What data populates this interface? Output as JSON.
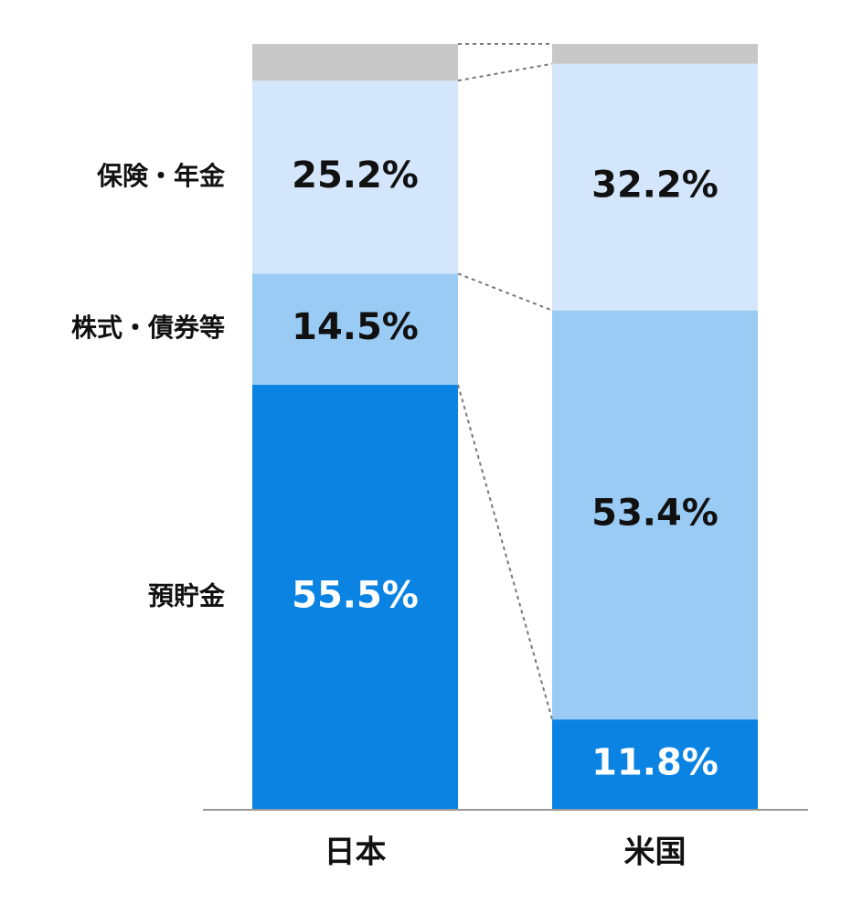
{
  "chart_data": {
    "type": "stacked_bar",
    "categories": [
      "日本",
      "米国"
    ],
    "ylim": [
      0,
      100
    ],
    "series": [
      {
        "name": "預貯金",
        "color": "#0b83e2",
        "values": [
          55.5,
          11.8
        ],
        "value_labels": [
          "55.5%",
          "11.8%"
        ]
      },
      {
        "name": "株式・債券等",
        "color": "#9acbf4",
        "values": [
          14.5,
          53.4
        ],
        "value_labels": [
          "14.5%",
          "53.4%"
        ]
      },
      {
        "name": "保険・年金",
        "color": "#d4e6fb",
        "values": [
          25.2,
          32.2
        ],
        "value_labels": [
          "25.2%",
          "32.2%"
        ]
      },
      {
        "color": "#c8c8c8",
        "values": [
          4.8,
          2.6
        ]
      }
    ]
  }
}
